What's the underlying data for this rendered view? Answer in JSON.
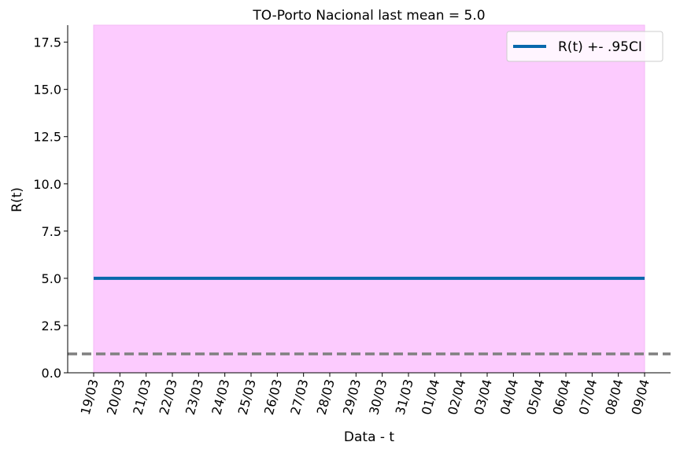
{
  "chart_data": {
    "type": "line",
    "title": "TO-Porto Nacional last mean = 5.0",
    "xlabel": "Data - t",
    "ylabel": "R(t)",
    "x": [
      "19/03",
      "20/03",
      "21/03",
      "22/03",
      "23/03",
      "24/03",
      "25/03",
      "26/03",
      "27/03",
      "28/03",
      "29/03",
      "30/03",
      "31/03",
      "01/04",
      "02/04",
      "03/04",
      "04/04",
      "05/04",
      "06/04",
      "07/04",
      "08/04",
      "09/04"
    ],
    "series": [
      {
        "name": "R(t) +- .95CI",
        "values": [
          5.0,
          5.0,
          5.0,
          5.0,
          5.0,
          5.0,
          5.0,
          5.0,
          5.0,
          5.0,
          5.0,
          5.0,
          5.0,
          5.0,
          5.0,
          5.0,
          5.0,
          5.0,
          5.0,
          5.0,
          5.0,
          5.0
        ],
        "ci_lower": [
          0,
          0,
          0,
          0,
          0,
          0,
          0,
          0,
          0,
          0,
          0,
          0,
          0,
          0,
          0,
          0,
          0,
          0,
          0,
          0,
          0,
          0
        ],
        "ci_upper": [
          18.5,
          18.5,
          18.5,
          18.5,
          18.5,
          18.5,
          18.5,
          18.5,
          18.5,
          18.5,
          18.5,
          18.5,
          18.5,
          18.5,
          18.5,
          18.5,
          18.5,
          18.5,
          18.5,
          18.5,
          18.5,
          18.5
        ],
        "color": "#0868ac",
        "ci_color": "#fccbfe"
      }
    ],
    "reference_line": {
      "y": 1.0,
      "style": "dashed",
      "color": "#808080"
    },
    "yticks": [
      "0.0",
      "2.5",
      "5.0",
      "7.5",
      "10.0",
      "12.5",
      "15.0",
      "17.5"
    ],
    "ylim": [
      0,
      18.4
    ],
    "grid": false,
    "legend_position": "top-right"
  }
}
